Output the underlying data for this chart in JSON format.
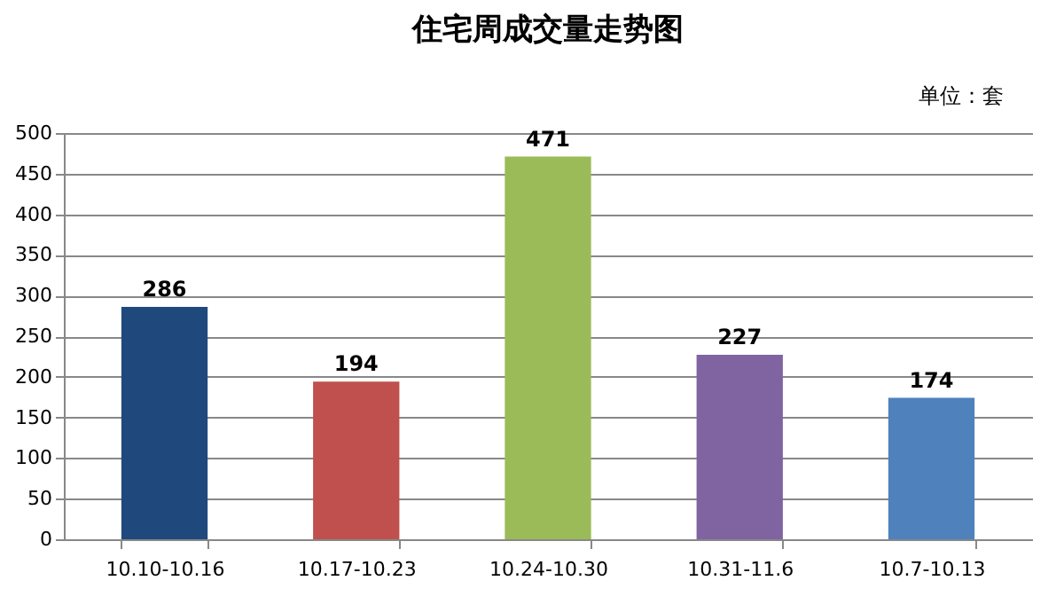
{
  "chart_data": {
    "type": "bar",
    "title": "住宅周成交量走势图",
    "annotations": [
      "单位：套"
    ],
    "categories": [
      "10.10-10.16",
      "10.17-10.23",
      "10.24-10.30",
      "10.31-11.6",
      "10.7-10.13"
    ],
    "values": [
      286,
      194,
      471,
      227,
      174
    ],
    "colors": [
      "#1f497d",
      "#c0504d",
      "#9bbb59",
      "#8064a2",
      "#4f81bd"
    ],
    "ylim": [
      0,
      500
    ],
    "yticks": [
      0,
      50,
      100,
      150,
      200,
      250,
      300,
      350,
      400,
      450,
      500
    ],
    "grid": "y",
    "data_labels": true
  }
}
